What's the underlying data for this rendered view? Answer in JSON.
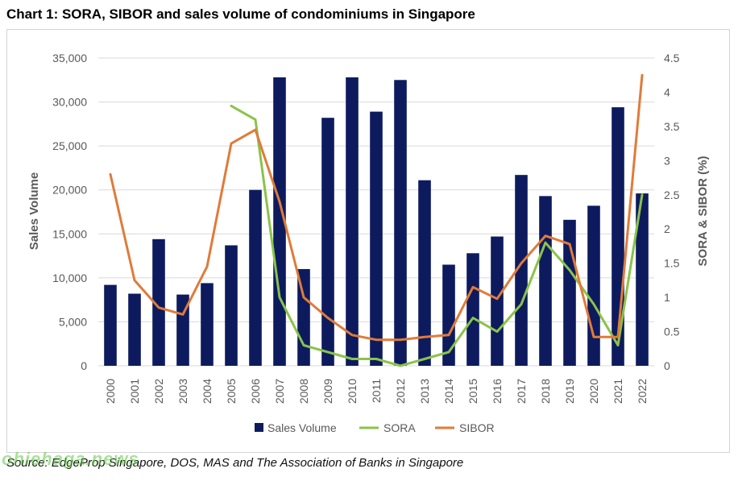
{
  "title": "Chart 1: SORA, SIBOR and sales volume of condominiums in Singapore",
  "source": "Source: EdgeProp Singapore, DOS, MAS and The Association of Banks in Singapore",
  "watermark": "ohiehaga.news",
  "chart_data": {
    "type": "bar+line",
    "categories": [
      "2000",
      "2001",
      "2002",
      "2003",
      "2004",
      "2005",
      "2006",
      "2007",
      "2008",
      "2009",
      "2010",
      "2011",
      "2012",
      "2013",
      "2014",
      "2015",
      "2016",
      "2017",
      "2018",
      "2019",
      "2020",
      "2021",
      "2022"
    ],
    "ylabel": "Sales Volume",
    "y2label": "SORA & SIBOR (%)",
    "ylim": [
      0,
      35000
    ],
    "yticks": [
      0,
      5000,
      10000,
      15000,
      20000,
      25000,
      30000,
      35000
    ],
    "y2lim": [
      0,
      4.5
    ],
    "y2ticks": [
      0,
      0.5,
      1,
      1.5,
      2,
      2.5,
      3,
      3.5,
      4,
      4.5
    ],
    "legend_position": "bottom",
    "grid": true,
    "colors": {
      "bars": "#0d1b5e",
      "sora": "#8bc34a",
      "sibor": "#e07b39",
      "grid": "#d9d9d9",
      "axis_text": "#595959"
    },
    "series": [
      {
        "name": "Sales Volume",
        "kind": "bar",
        "axis": "left",
        "values": [
          9200,
          8200,
          14400,
          8100,
          9400,
          13700,
          20000,
          32800,
          11000,
          28200,
          32800,
          28900,
          32500,
          21100,
          11500,
          12800,
          14700,
          21700,
          19300,
          16600,
          18200,
          29400,
          19600
        ]
      },
      {
        "name": "SORA",
        "kind": "line",
        "axis": "right",
        "values": [
          null,
          null,
          null,
          null,
          null,
          3.8,
          3.6,
          1.0,
          0.3,
          0.2,
          0.1,
          0.1,
          0.0,
          0.1,
          0.2,
          0.7,
          0.5,
          0.9,
          1.8,
          1.4,
          0.9,
          0.3,
          2.5
        ]
      },
      {
        "name": "SIBOR",
        "kind": "line",
        "axis": "right",
        "values": [
          2.8,
          1.25,
          0.85,
          0.75,
          1.45,
          3.25,
          3.45,
          2.4,
          1.0,
          0.7,
          0.45,
          0.38,
          0.38,
          0.42,
          0.45,
          1.15,
          0.98,
          1.5,
          1.9,
          1.78,
          0.42,
          0.42,
          4.25
        ]
      }
    ]
  }
}
